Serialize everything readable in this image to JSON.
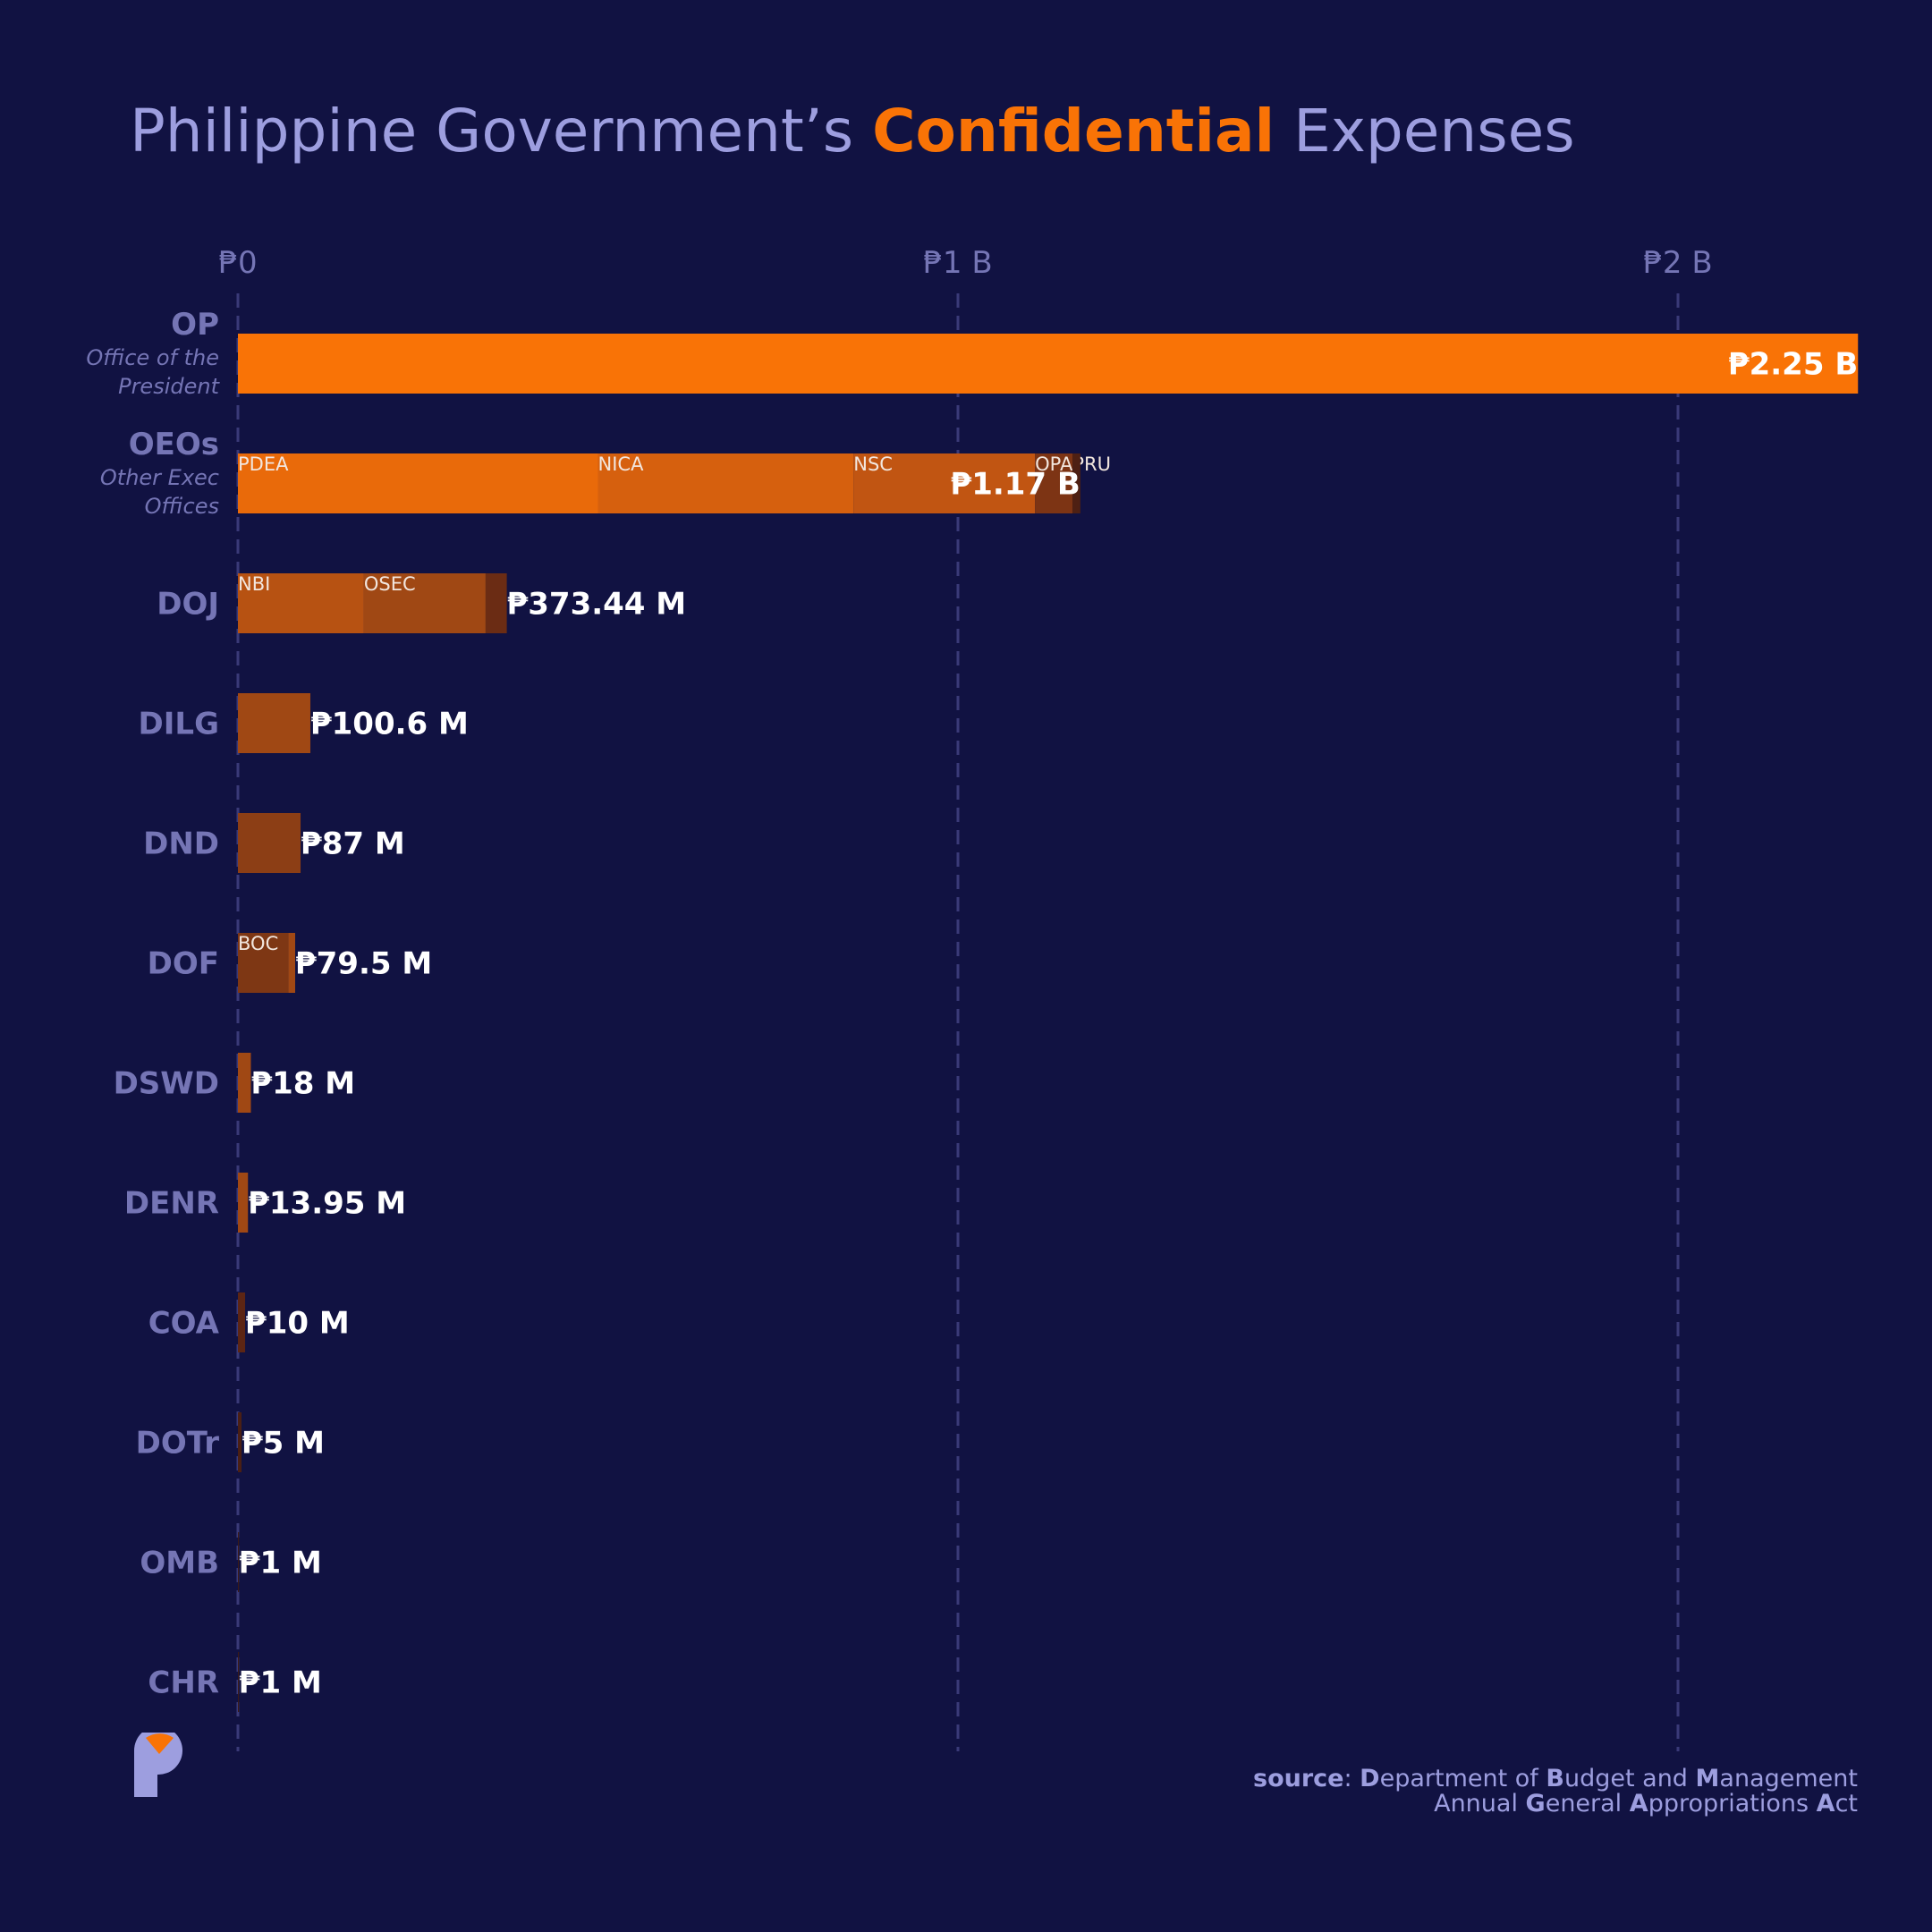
{
  "title": {
    "part1": "Philippine Government’s ",
    "highlight": "Confidential",
    "part2": " Expenses"
  },
  "colors": {
    "background": "#111242",
    "accent": "#f97306",
    "muted_text": "#7575b5",
    "grid": "#3a3a78",
    "value_label": "#ffffff"
  },
  "chart_data": {
    "type": "bar",
    "orientation": "horizontal",
    "stacked": true,
    "unit": "PHP",
    "xlim": [
      0,
      2.25
    ],
    "x_unit": "billions",
    "grid": true,
    "ticks": [
      {
        "value": 0,
        "label": "₱0"
      },
      {
        "value": 1,
        "label": "₱1 B"
      },
      {
        "value": 2,
        "label": "₱2 B"
      }
    ],
    "categories": [
      {
        "label": "OP",
        "sub": [
          "Office of the",
          "President"
        ],
        "total": 2.25,
        "total_label": "₱2.25 B",
        "segments": [
          {
            "name": "",
            "value": 2.25,
            "color": "#f97306"
          }
        ]
      },
      {
        "label": "OEOs",
        "sub": [
          "Other Exec",
          "Offices"
        ],
        "total": 1.17,
        "total_label": "₱1.17 B",
        "segments": [
          {
            "name": "PDEA",
            "value": 0.5,
            "color": "#e96a0a"
          },
          {
            "name": "NICA",
            "value": 0.355,
            "color": "#d6600e"
          },
          {
            "name": "NSC",
            "value": 0.252,
            "color": "#c15512"
          },
          {
            "name": "OPAPRU",
            "value": 0.052,
            "color": "#7d3414"
          },
          {
            "name": "",
            "value": 0.011,
            "color": "#4e2013"
          }
        ]
      },
      {
        "label": "DOJ",
        "sub": [],
        "total": 0.37344,
        "total_label": "₱373.44 M",
        "segments": [
          {
            "name": "NBI",
            "value": 0.175,
            "color": "#b75212"
          },
          {
            "name": "OSEC",
            "value": 0.169,
            "color": "#a04814"
          },
          {
            "name": "",
            "value": 0.02944,
            "color": "#6b2c14"
          }
        ]
      },
      {
        "label": "DILG",
        "sub": [],
        "total": 0.1006,
        "total_label": "₱100.6 M",
        "segments": [
          {
            "name": "",
            "value": 0.1006,
            "color": "#a04814"
          }
        ]
      },
      {
        "label": "DND",
        "sub": [],
        "total": 0.087,
        "total_label": "₱87 M",
        "segments": [
          {
            "name": "",
            "value": 0.087,
            "color": "#8c3e15"
          }
        ]
      },
      {
        "label": "DOF",
        "sub": [],
        "total": 0.0795,
        "total_label": "₱79.5 M",
        "segments": [
          {
            "name": "BOC",
            "value": 0.07,
            "color": "#7e3714"
          },
          {
            "name": "",
            "value": 0.0095,
            "color": "#a04814"
          }
        ]
      },
      {
        "label": "DSWD",
        "sub": [],
        "total": 0.018,
        "total_label": "₱18 M",
        "segments": [
          {
            "name": "",
            "value": 0.018,
            "color": "#a04814"
          }
        ]
      },
      {
        "label": "DENR",
        "sub": [],
        "total": 0.01395,
        "total_label": "₱13.95 M",
        "segments": [
          {
            "name": "",
            "value": 0.01395,
            "color": "#a04814"
          }
        ]
      },
      {
        "label": "COA",
        "sub": [],
        "total": 0.01,
        "total_label": "₱10 M",
        "segments": [
          {
            "name": "",
            "value": 0.01,
            "color": "#5c2514"
          }
        ]
      },
      {
        "label": "DOTr",
        "sub": [],
        "total": 0.005,
        "total_label": "₱5 M",
        "segments": [
          {
            "name": "",
            "value": 0.005,
            "color": "#4a1f14"
          }
        ]
      },
      {
        "label": "OMB",
        "sub": [],
        "total": 0.001,
        "total_label": "₱1 M",
        "segments": [
          {
            "name": "",
            "value": 0.001,
            "color": "#3a1a18"
          }
        ]
      },
      {
        "label": "CHR",
        "sub": [],
        "total": 0.001,
        "total_label": "₱1 M",
        "segments": [
          {
            "name": "",
            "value": 0.001,
            "color": "#3a1a18"
          }
        ]
      }
    ]
  },
  "source": {
    "line1": [
      {
        "t": "source",
        "b": true
      },
      {
        "t": ": ",
        "b": false
      },
      {
        "t": "D",
        "b": true
      },
      {
        "t": "epartment of ",
        "b": false
      },
      {
        "t": "B",
        "b": true
      },
      {
        "t": "udget and ",
        "b": false
      },
      {
        "t": "M",
        "b": true
      },
      {
        "t": "anagement",
        "b": false
      }
    ],
    "line2": [
      {
        "t": "Annual ",
        "b": false
      },
      {
        "t": "G",
        "b": true
      },
      {
        "t": "eneral ",
        "b": false
      },
      {
        "t": "A",
        "b": true
      },
      {
        "t": "ppropriations ",
        "b": false
      },
      {
        "t": "A",
        "b": true
      },
      {
        "t": "ct",
        "b": false
      }
    ]
  },
  "logo": {
    "icon": "p-logo-icon"
  }
}
